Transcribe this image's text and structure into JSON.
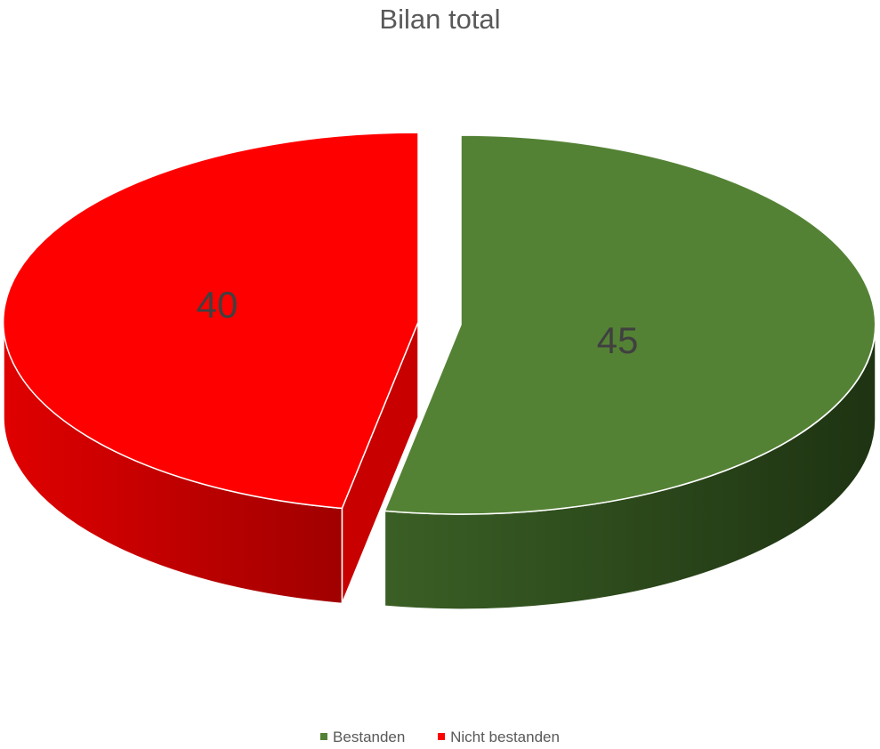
{
  "chart_data": {
    "type": "pie",
    "title": "Bilan total",
    "categories": [
      "Bestanden",
      "Nicht bestanden"
    ],
    "values": [
      45,
      40
    ],
    "colors": [
      "#548235",
      "#FF0000"
    ],
    "side_colors": [
      "#2E4A1E",
      "#C00000"
    ],
    "data_labels": [
      "45",
      "40"
    ],
    "exploded": true,
    "style": "3d",
    "legend_position": "bottom"
  }
}
